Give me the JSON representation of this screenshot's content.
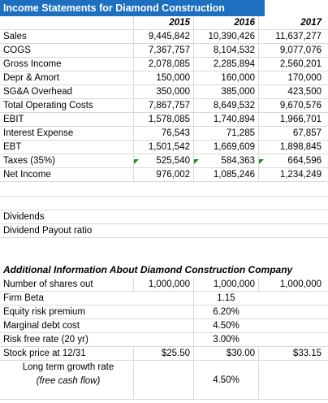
{
  "title": "Income Statements for Diamond Construction Company",
  "years": [
    "2015",
    "2016",
    "2017"
  ],
  "rows": [
    {
      "label": "Sales",
      "v": [
        "9,445,842",
        "10,390,426",
        "11,637,277"
      ]
    },
    {
      "label": "COGS",
      "v": [
        "7,367,757",
        "8,104,532",
        "9,077,076"
      ]
    },
    {
      "label": "Gross Income",
      "v": [
        "2,078,085",
        "2,285,894",
        "2,560,201"
      ]
    },
    {
      "label": "Depr & Amort",
      "v": [
        "150,000",
        "160,000",
        "170,000"
      ]
    },
    {
      "label": "SG&A Overhead",
      "v": [
        "350,000",
        "385,000",
        "423,500"
      ]
    },
    {
      "label": "Total Operating Costs",
      "v": [
        "7,867,757",
        "8,649,532",
        "9,670,576"
      ]
    },
    {
      "label": "EBIT",
      "v": [
        "1,578,085",
        "1,740,894",
        "1,966,701"
      ]
    },
    {
      "label": "Interest Expense",
      "v": [
        "76,543",
        "71,285",
        "67,857"
      ]
    },
    {
      "label": "EBT",
      "v": [
        "1,501,542",
        "1,669,609",
        "1,898,845"
      ]
    },
    {
      "label": "Taxes (35%)",
      "v": [
        "525,540",
        "584,363",
        "664,596"
      ]
    },
    {
      "label": "Net Income",
      "v": [
        "976,002",
        "1,085,246",
        "1,234,249"
      ]
    }
  ],
  "dividends": {
    "label": "Dividends",
    "payout_label": "Dividend Payout ratio"
  },
  "additional": {
    "title": "Additional Information About Diamond Construction Company",
    "shares": {
      "label": "Number of shares out",
      "v": [
        "1,000,000",
        "1,000,000",
        "1,000,000"
      ]
    },
    "beta": {
      "label": "Firm Beta",
      "value": "1.15"
    },
    "erp": {
      "label": "Equity risk premium",
      "value": "6.20%"
    },
    "debt": {
      "label": "Marginal debt cost",
      "value": "4.50%"
    },
    "rf": {
      "label": "Risk free rate (20 yr)",
      "value": "3.00%"
    },
    "price": {
      "label": "Stock price at 12/31",
      "v": [
        "$25.50",
        "$30.00",
        "$33.15"
      ]
    },
    "growth": {
      "label": "Long term growth rate",
      "sublabel": "(free cash flow)",
      "value": "4.50%"
    }
  },
  "colors": {
    "title_bg": "#1f6fc0",
    "marker": "#1e8a1e"
  }
}
